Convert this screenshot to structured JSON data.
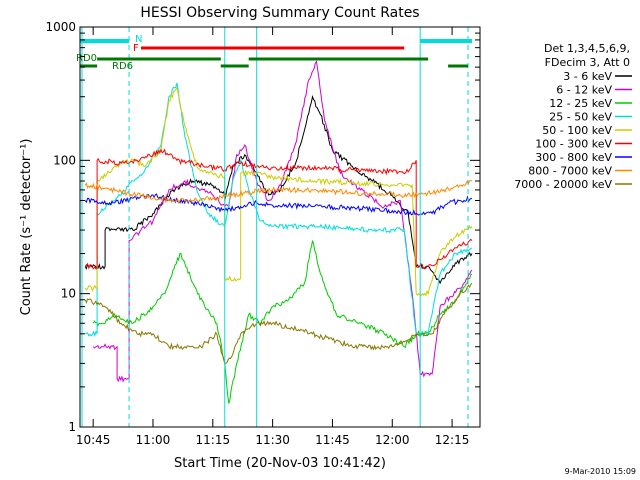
{
  "chart_data": {
    "type": "line",
    "title": "HESSI Observing Summary Count Rates",
    "xlabel": "Start Time (20-Nov-03 10:41:42)",
    "ylabel": "Count Rate (s⁻¹ detector⁻¹)",
    "yscale": "log",
    "ylim": [
      1,
      1000
    ],
    "xlim": [
      "10:41:42",
      "12:22"
    ],
    "x_ticks": [
      "10:45",
      "11:00",
      "11:15",
      "11:30",
      "11:45",
      "12:00",
      "12:15"
    ],
    "y_ticks": [
      "1",
      "10",
      "100",
      "1000"
    ],
    "legend": {
      "header": [
        "Det 1,3,4,5,6,9,",
        "FDecim 3, Att 0"
      ],
      "placement": "right"
    },
    "footer_date": "9-Mar-2010 15:09",
    "flag_labels": {
      "night": "N",
      "flare": "F",
      "rd0": "RD0",
      "rd6": "RD6"
    },
    "series": [
      {
        "name": "3 - 6 keV",
        "color": "#000000",
        "points": [
          [
            "10:43",
            16
          ],
          [
            "10:48",
            16
          ],
          [
            "10:48",
            30
          ],
          [
            "10:55",
            30
          ],
          [
            "11:00",
            40
          ],
          [
            "11:05",
            60
          ],
          [
            "11:10",
            70
          ],
          [
            "11:15",
            65
          ],
          [
            "11:18",
            55
          ],
          [
            "11:18",
            50
          ],
          [
            "11:20",
            90
          ],
          [
            "11:23",
            110
          ],
          [
            "11:26",
            80
          ],
          [
            "11:29",
            55
          ],
          [
            "11:32",
            60
          ],
          [
            "11:36",
            100
          ],
          [
            "11:40",
            300
          ],
          [
            "11:42",
            220
          ],
          [
            "11:45",
            120
          ],
          [
            "11:50",
            90
          ],
          [
            "11:55",
            70
          ],
          [
            "12:00",
            55
          ],
          [
            "12:04",
            40
          ],
          [
            "12:06",
            16
          ],
          [
            "12:09",
            16
          ],
          [
            "12:12",
            12
          ],
          [
            "12:17",
            18
          ],
          [
            "12:20",
            20
          ]
        ]
      },
      {
        "name": "6 - 12 keV",
        "color": "#d000d0",
        "points": [
          [
            "10:45",
            4
          ],
          [
            "10:51",
            4
          ],
          [
            "10:51",
            2.3
          ],
          [
            "10:54",
            2.3
          ],
          [
            "10:54",
            25
          ],
          [
            "11:00",
            35
          ],
          [
            "11:04",
            60
          ],
          [
            "11:08",
            70
          ],
          [
            "11:12",
            60
          ],
          [
            "11:15",
            55
          ],
          [
            "11:18",
            45
          ],
          [
            "11:19",
            45
          ],
          [
            "11:21",
            110
          ],
          [
            "11:23",
            130
          ],
          [
            "11:26",
            70
          ],
          [
            "11:29",
            50
          ],
          [
            "11:32",
            65
          ],
          [
            "11:36",
            140
          ],
          [
            "11:39",
            400
          ],
          [
            "11:41",
            550
          ],
          [
            "11:43",
            200
          ],
          [
            "11:47",
            80
          ],
          [
            "11:52",
            60
          ],
          [
            "11:58",
            45
          ],
          [
            "12:02",
            50
          ],
          [
            "12:05",
            10
          ],
          [
            "12:07",
            2.5
          ],
          [
            "12:10",
            2.5
          ],
          [
            "12:12",
            8
          ],
          [
            "12:18",
            12
          ],
          [
            "12:20",
            15
          ]
        ]
      },
      {
        "name": "12 - 25 keV",
        "color": "#00cc00",
        "points": [
          [
            "10:45",
            6
          ],
          [
            "10:48",
            6
          ],
          [
            "10:50",
            7
          ],
          [
            "10:55",
            6
          ],
          [
            "11:00",
            8
          ],
          [
            "11:03",
            10
          ],
          [
            "11:05",
            15
          ],
          [
            "11:07",
            20
          ],
          [
            "11:10",
            12
          ],
          [
            "11:13",
            8
          ],
          [
            "11:16",
            6
          ],
          [
            "11:18",
            3
          ],
          [
            "11:19",
            1.5
          ],
          [
            "11:21",
            3
          ],
          [
            "11:24",
            7
          ],
          [
            "11:27",
            6
          ],
          [
            "11:30",
            8
          ],
          [
            "11:34",
            9
          ],
          [
            "11:38",
            12
          ],
          [
            "11:40",
            25
          ],
          [
            "11:42",
            14
          ],
          [
            "11:46",
            7
          ],
          [
            "11:52",
            6
          ],
          [
            "11:58",
            5
          ],
          [
            "12:03",
            4
          ],
          [
            "12:06",
            5
          ],
          [
            "12:09",
            5
          ],
          [
            "12:12",
            7
          ],
          [
            "12:16",
            9
          ],
          [
            "12:20",
            14
          ]
        ]
      },
      {
        "name": "25 - 50 keV",
        "color": "#00dddd",
        "points": [
          [
            "10:43",
            5
          ],
          [
            "10:46",
            5
          ],
          [
            "10:46",
            40
          ],
          [
            "10:52",
            55
          ],
          [
            "10:55",
            70
          ],
          [
            "10:58",
            85
          ],
          [
            "11:02",
            130
          ],
          [
            "11:04",
            300
          ],
          [
            "11:06",
            380
          ],
          [
            "11:08",
            150
          ],
          [
            "11:11",
            60
          ],
          [
            "11:14",
            40
          ],
          [
            "11:17",
            33
          ],
          [
            "11:18",
            32
          ],
          [
            "11:20",
            70
          ],
          [
            "11:22",
            100
          ],
          [
            "11:24",
            60
          ],
          [
            "11:27",
            35
          ],
          [
            "11:30",
            32
          ],
          [
            "11:40",
            32
          ],
          [
            "11:55",
            30
          ],
          [
            "12:03",
            30
          ],
          [
            "12:06",
            5
          ],
          [
            "12:09",
            5
          ],
          [
            "12:12",
            14
          ],
          [
            "12:16",
            20
          ],
          [
            "12:20",
            22
          ]
        ]
      },
      {
        "name": "50 - 100 keV",
        "color": "#cccc00",
        "points": [
          [
            "10:43",
            11
          ],
          [
            "10:46",
            11
          ],
          [
            "10:46",
            70
          ],
          [
            "10:52",
            95
          ],
          [
            "10:55",
            100
          ],
          [
            "10:58",
            90
          ],
          [
            "11:02",
            120
          ],
          [
            "11:04",
            280
          ],
          [
            "11:06",
            350
          ],
          [
            "11:08",
            180
          ],
          [
            "11:11",
            90
          ],
          [
            "11:14",
            80
          ],
          [
            "11:18",
            75
          ],
          [
            "11:18",
            13
          ],
          [
            "11:22",
            13
          ],
          [
            "11:22",
            80
          ],
          [
            "11:26",
            80
          ],
          [
            "11:30",
            75
          ],
          [
            "11:40",
            70
          ],
          [
            "11:50",
            68
          ],
          [
            "12:00",
            65
          ],
          [
            "12:05",
            65
          ],
          [
            "12:06",
            10
          ],
          [
            "12:09",
            10
          ],
          [
            "12:12",
            20
          ],
          [
            "12:16",
            27
          ],
          [
            "12:20",
            32
          ]
        ]
      },
      {
        "name": "100 - 300 keV",
        "color": "#ff0000",
        "points": [
          [
            "10:43",
            16
          ],
          [
            "10:46",
            16
          ],
          [
            "10:46",
            100
          ],
          [
            "10:52",
            95
          ],
          [
            "10:56",
            100
          ],
          [
            "11:00",
            110
          ],
          [
            "11:02",
            120
          ],
          [
            "11:06",
            100
          ],
          [
            "11:10",
            95
          ],
          [
            "11:14",
            90
          ],
          [
            "11:18",
            85
          ],
          [
            "11:22",
            95
          ],
          [
            "11:26",
            90
          ],
          [
            "11:30",
            88
          ],
          [
            "11:40",
            88
          ],
          [
            "11:50",
            85
          ],
          [
            "12:00",
            82
          ],
          [
            "12:04",
            82
          ],
          [
            "12:05",
            95
          ],
          [
            "12:06",
            100
          ],
          [
            "12:06",
            16
          ],
          [
            "12:09",
            16
          ],
          [
            "12:12",
            18
          ],
          [
            "12:16",
            22
          ],
          [
            "12:20",
            25
          ]
        ]
      },
      {
        "name": "300 - 800 keV",
        "color": "#0000ff",
        "points": [
          [
            "10:43",
            50
          ],
          [
            "10:50",
            48
          ],
          [
            "10:55",
            52
          ],
          [
            "11:00",
            55
          ],
          [
            "11:05",
            50
          ],
          [
            "11:10",
            48
          ],
          [
            "11:15",
            45
          ],
          [
            "11:18",
            42
          ],
          [
            "11:22",
            45
          ],
          [
            "11:26",
            48
          ],
          [
            "11:30",
            46
          ],
          [
            "11:40",
            45
          ],
          [
            "11:50",
            44
          ],
          [
            "12:00",
            42
          ],
          [
            "12:06",
            40
          ],
          [
            "12:10",
            40
          ],
          [
            "12:14",
            48
          ],
          [
            "12:18",
            50
          ],
          [
            "12:20",
            52
          ]
        ]
      },
      {
        "name": "800 - 7000 keV",
        "color": "#ff8800",
        "points": [
          [
            "10:43",
            65
          ],
          [
            "10:48",
            62
          ],
          [
            "10:52",
            58
          ],
          [
            "10:56",
            55
          ],
          [
            "11:00",
            52
          ],
          [
            "11:05",
            50
          ],
          [
            "11:10",
            50
          ],
          [
            "11:15",
            52
          ],
          [
            "11:20",
            55
          ],
          [
            "11:25",
            58
          ],
          [
            "11:30",
            60
          ],
          [
            "11:40",
            60
          ],
          [
            "11:50",
            57
          ],
          [
            "12:00",
            55
          ],
          [
            "12:05",
            55
          ],
          [
            "12:08",
            56
          ],
          [
            "12:12",
            58
          ],
          [
            "12:16",
            64
          ],
          [
            "12:20",
            70
          ]
        ]
      },
      {
        "name": "7000 - 20000 keV",
        "color": "#887700",
        "points": [
          [
            "10:43",
            9
          ],
          [
            "10:48",
            8
          ],
          [
            "10:52",
            6
          ],
          [
            "10:56",
            5
          ],
          [
            "11:00",
            5
          ],
          [
            "11:04",
            4
          ],
          [
            "11:08",
            4
          ],
          [
            "11:12",
            4
          ],
          [
            "11:16",
            5
          ],
          [
            "11:18",
            3
          ],
          [
            "11:20",
            3.5
          ],
          [
            "11:22",
            5
          ],
          [
            "11:26",
            6
          ],
          [
            "11:30",
            6
          ],
          [
            "11:35",
            5.5
          ],
          [
            "11:40",
            5
          ],
          [
            "11:45",
            4.5
          ],
          [
            "11:50",
            4
          ],
          [
            "11:55",
            4
          ],
          [
            "12:00",
            4
          ],
          [
            "12:04",
            4.5
          ],
          [
            "12:06",
            5
          ],
          [
            "12:10",
            5
          ],
          [
            "12:13",
            7
          ],
          [
            "12:17",
            10
          ],
          [
            "12:20",
            12
          ]
        ]
      }
    ]
  }
}
